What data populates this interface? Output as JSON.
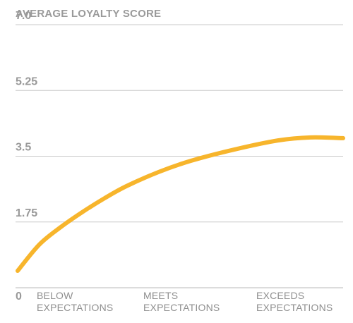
{
  "chart_data": {
    "type": "line",
    "title": "AVERAGE LOYALTY SCORE",
    "xlabel": "",
    "ylabel": "",
    "ylim": [
      0,
      7.0
    ],
    "y_ticks": [
      "0",
      "1.75",
      "3.5",
      "5.25",
      "7.0"
    ],
    "x_ticks": [
      [
        "BELOW",
        "EXPECTATIONS"
      ],
      [
        "MEETS",
        "EXPECTATIONS"
      ],
      [
        "EXCEEDS",
        "EXPECTATIONS"
      ]
    ],
    "grid": true,
    "series": [
      {
        "color": "#F7B52C",
        "x": [
          0,
          0.2,
          0.4,
          0.6,
          0.8,
          1.0,
          1.3,
          1.6,
          2.0,
          2.4,
          2.7,
          3.0
        ],
        "values": [
          0.45,
          1.15,
          1.62,
          2.02,
          2.38,
          2.7,
          3.08,
          3.38,
          3.68,
          3.92,
          4.0,
          3.98
        ]
      }
    ]
  }
}
